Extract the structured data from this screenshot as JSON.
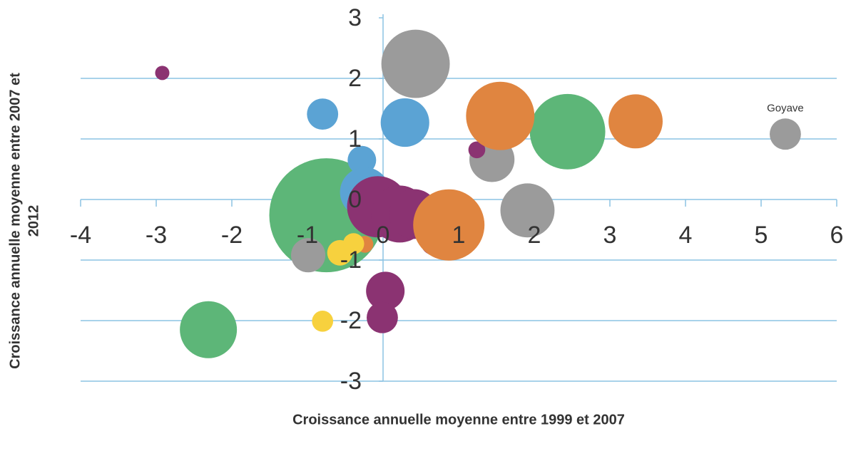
{
  "chart_data": {
    "type": "bubble",
    "xlabel": "Croissance annuelle moyenne entre 1999 et 2007",
    "ylabel": [
      "Croissance annuelle moyenne entre 2007 et",
      "2012"
    ],
    "xlim": [
      -4,
      6
    ],
    "xticks": [
      -4,
      -3,
      -2,
      -1,
      0,
      1,
      2,
      3,
      4,
      5,
      6
    ],
    "ylim": [
      -3,
      3
    ],
    "yticks": [
      -3,
      -2,
      -1,
      0,
      1,
      2,
      3
    ],
    "grid": true,
    "series": [
      {
        "color": "#5db678",
        "x": [
          -0.75,
          2.44,
          -2.31
        ],
        "values": [
          -0.26,
          1.12,
          -2.15
        ],
        "sizes": [
          64,
          28,
          16
        ]
      },
      {
        "color": "#9b9b9b",
        "x": [
          0.43,
          1.44,
          1.91,
          -0.99,
          5.32
        ],
        "values": [
          2.24,
          0.66,
          -0.18,
          -0.92,
          1.08
        ],
        "sizes": [
          23,
          10,
          14.4,
          5.8,
          4.8
        ],
        "point_labels": [
          null,
          null,
          null,
          null,
          "Goyave"
        ]
      },
      {
        "color": "#5ba3d4",
        "x": [
          -0.8,
          0.29,
          -0.28,
          -0.24
        ],
        "values": [
          1.41,
          1.27,
          0.65,
          0.12
        ],
        "sizes": [
          4.8,
          11.6,
          4,
          12.2
        ]
      },
      {
        "color": "#8b3372",
        "x": [
          -2.92,
          1.24,
          -0.07,
          0.22,
          0.41,
          0.67,
          0.03,
          -0.01
        ],
        "values": [
          2.09,
          0.82,
          -0.12,
          -0.24,
          -0.24,
          -0.71,
          -1.51,
          -1.95
        ],
        "sizes": [
          1,
          1.4,
          18.5,
          16,
          12.2,
          3.2,
          7.3,
          4.8
        ]
      },
      {
        "color": "#e08540",
        "x": [
          1.55,
          3.34,
          0.87,
          -0.24
        ],
        "values": [
          1.38,
          1.29,
          -0.42,
          -0.74
        ],
        "sizes": [
          23,
          14.4,
          25,
          1.4
        ]
      },
      {
        "color": "#f7d13e",
        "x": [
          -0.57,
          -0.39,
          -0.8
        ],
        "values": [
          -0.88,
          -0.73,
          -2.01
        ],
        "sizes": [
          3.2,
          2.2,
          2.2
        ]
      }
    ]
  }
}
